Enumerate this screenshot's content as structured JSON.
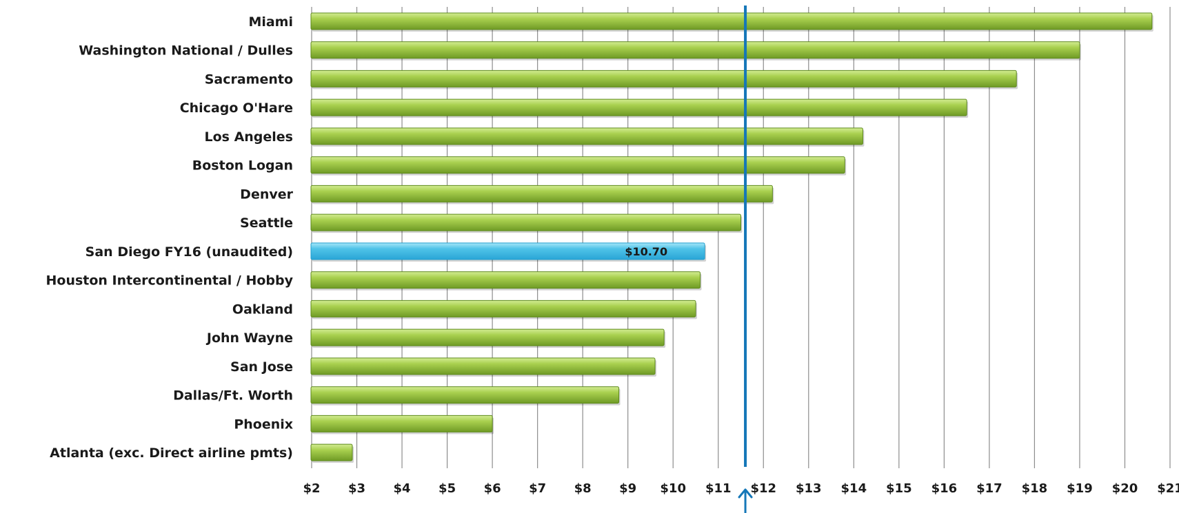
{
  "chart_data": {
    "type": "bar",
    "orientation": "horizontal",
    "title": "",
    "xlabel": "",
    "ylabel": "",
    "xlim": [
      2,
      21
    ],
    "tick_labels": [
      "$2",
      "$3",
      "$4",
      "$5",
      "$6",
      "$7",
      "$8",
      "$9",
      "$10",
      "$11",
      "$12",
      "$13",
      "$14",
      "$15",
      "$16",
      "$17",
      "$18",
      "$19",
      "$20",
      "$21"
    ],
    "grid": true,
    "legend": "none",
    "categories": [
      "Miami",
      "Washington National / Dulles",
      "Sacramento",
      "Chicago O'Hare",
      "Los Angeles",
      "Boston Logan",
      "Denver",
      "Seattle",
      "San Diego FY16 (unaudited)",
      "Houston Intercontinental / Hobby",
      "Oakland",
      "John Wayne",
      "San Jose",
      "Dallas/Ft. Worth",
      "Phoenix",
      "Atlanta (exc. Direct airline pmts)"
    ],
    "values": [
      20.6,
      19.0,
      17.6,
      16.5,
      14.2,
      13.8,
      12.2,
      11.5,
      10.7,
      10.6,
      10.5,
      9.8,
      9.6,
      8.8,
      6.0,
      2.9
    ],
    "highlight": {
      "category": "San Diego FY16 (unaudited)",
      "data_label": "$10.70",
      "color": "#4fc3e8"
    },
    "reference_line": {
      "value": 11.6,
      "color": "#1577b8"
    },
    "bar_color": "#9bc53d",
    "colors": {
      "bar": "#9bc53d",
      "bar_dark": "#5e8a1c",
      "highlight": "#4fc3e8",
      "highlight_dark": "#1f9fcf",
      "reference": "#1577b8"
    }
  }
}
